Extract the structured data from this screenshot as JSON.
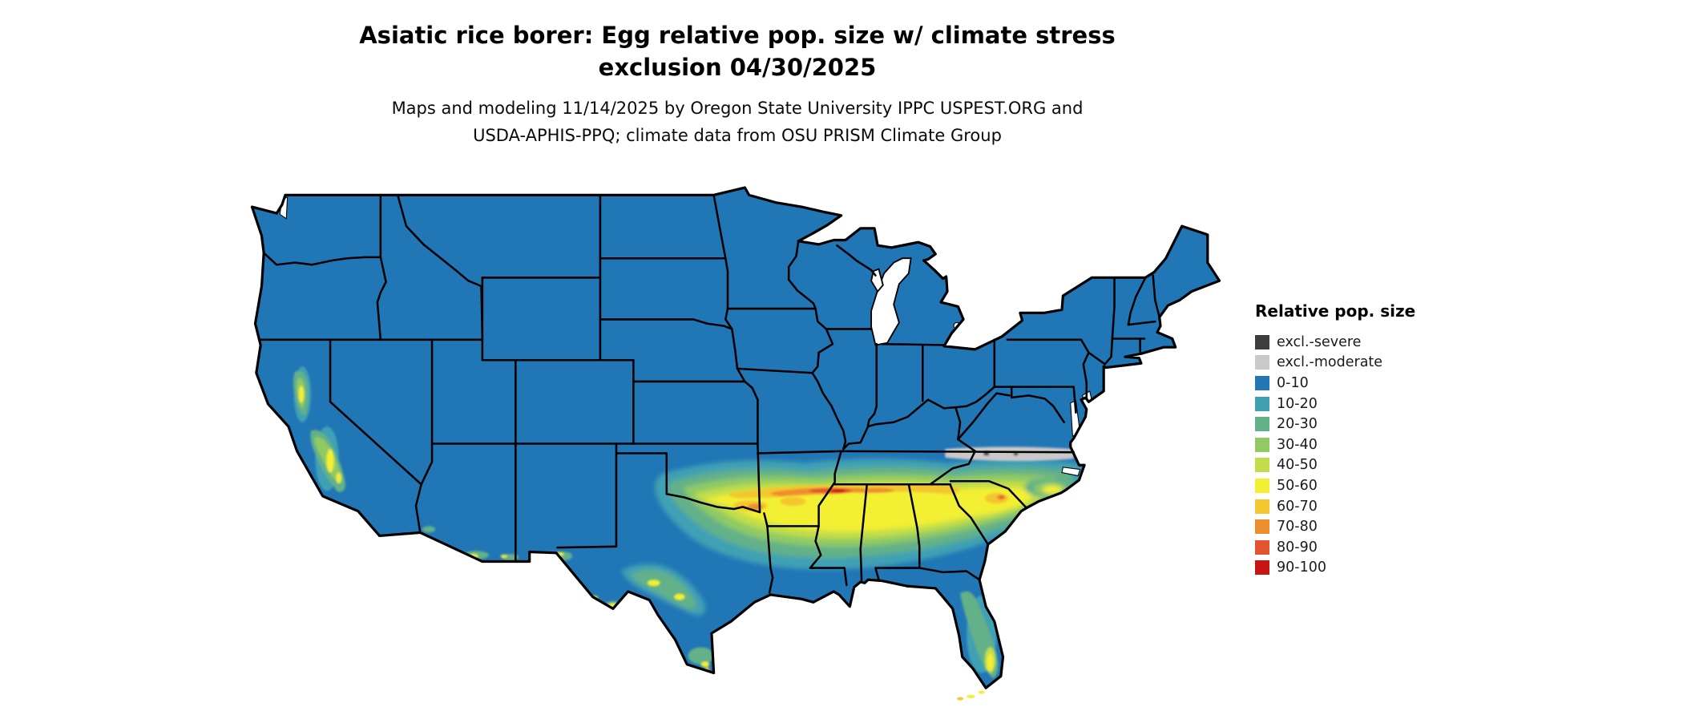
{
  "title": {
    "line1": "Asiatic rice borer: Egg relative pop. size w/ climate stress",
    "line2": "exclusion 04/30/2025"
  },
  "subtitle": {
    "line1": "Maps and modeling 11/14/2025 by Oregon State University IPPC USPEST.ORG and",
    "line2": "USDA-APHIS-PPQ; climate data from OSU PRISM Climate Group"
  },
  "legend": {
    "title": "Relative pop. size",
    "items": [
      {
        "label": "excl.-severe",
        "key": "excl_severe",
        "color": "#3d3d3d"
      },
      {
        "label": "excl.-moderate",
        "key": "excl_moderate",
        "color": "#c9c9c9"
      },
      {
        "label": "0-10",
        "key": "b0_10",
        "color": "#2176b6"
      },
      {
        "label": "10-20",
        "key": "b10_20",
        "color": "#3fa0b4"
      },
      {
        "label": "20-30",
        "key": "b20_30",
        "color": "#63b188"
      },
      {
        "label": "30-40",
        "key": "b30_40",
        "color": "#8fca63"
      },
      {
        "label": "40-50",
        "key": "b40_50",
        "color": "#c2dd49"
      },
      {
        "label": "50-60",
        "key": "b50_60",
        "color": "#f3ef33"
      },
      {
        "label": "60-70",
        "key": "b60_70",
        "color": "#f4c62f"
      },
      {
        "label": "70-80",
        "key": "b70_80",
        "color": "#ee8d2d"
      },
      {
        "label": "80-90",
        "key": "b80_90",
        "color": "#e25330"
      },
      {
        "label": "90-100",
        "key": "b90_100",
        "color": "#c81511"
      }
    ]
  },
  "map": {
    "region": "Contiguous United States",
    "water_color": "#ffffff",
    "border_color": "#000000",
    "dominant_class": "0-10",
    "high_population_regions": "Southern band from central Texas through Louisiana, Mississippi, Alabama, Georgia to the Carolina coasts; California Central Valley; south Texas; southern Florida",
    "exclusion_regions": "excl.-moderate band along the Virginia / North Carolina border"
  }
}
